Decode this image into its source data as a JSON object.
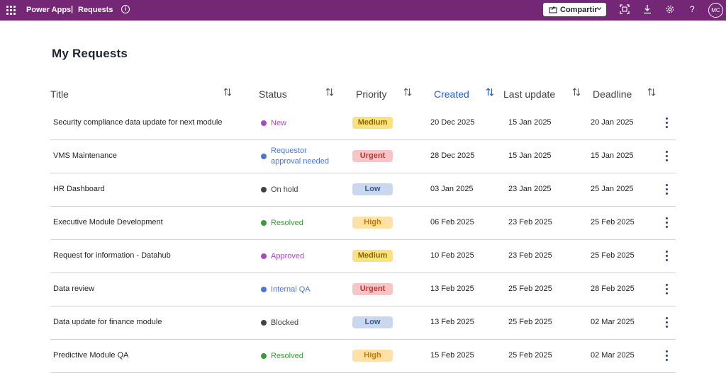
{
  "topbar": {
    "app": "Power Apps",
    "separator": "|",
    "page": "Requests",
    "info_icon": "info-icon",
    "share_label": "Compartir",
    "share_icon": "share-icon",
    "icons": [
      "focus-icon",
      "download-icon",
      "gear-icon",
      "help-icon"
    ],
    "help_glyph": "?",
    "avatar": "MC",
    "bar_color": "#742774"
  },
  "main": {
    "title": "My Requests",
    "columns": [
      "Title",
      "Status",
      "Priority",
      "Created",
      "Last update",
      "Deadline"
    ],
    "active_column": "Created",
    "rows": [
      {
        "title": "Security compliance data update for next module",
        "status": "New",
        "status_color": "#a64ac9",
        "priority": "Medium",
        "created": "20 Dec 2025",
        "updated": "15 Jan 2025",
        "deadline": "20 Jan 2025"
      },
      {
        "title": "VMS Maintenance",
        "status_line1": "Requestor",
        "status_line2": "approval needed",
        "status_color": "#4a78d1",
        "priority": "Urgent",
        "created": "28 Dec 2025",
        "updated": "15 Jan 2025",
        "deadline": "15 Jan 2025"
      },
      {
        "title": "HR Dashboard",
        "status": "On hold",
        "status_color": "#424242",
        "priority": "Low",
        "created": "03 Jan 2025",
        "updated": "23 Jan 2025",
        "deadline": "25 Jan 2025"
      },
      {
        "title": "Executive Module Development",
        "status": "Resolved",
        "status_color": "#3a9a3a",
        "priority": "High",
        "created": "06 Feb 2025",
        "updated": "23 Feb 2025",
        "deadline": "25 Feb 2025"
      },
      {
        "title": "Request for information - Datahub",
        "status": "Approved",
        "status_color": "#a64ac9",
        "priority": "Medium",
        "created": "10 Feb 2025",
        "updated": "23 Feb 2025",
        "deadline": "25 Feb 2025"
      },
      {
        "title": "Data review",
        "status": "Internal QA",
        "status_color": "#4a78d1",
        "priority": "Urgent",
        "created": "13 Feb 2025",
        "updated": "25 Feb 2025",
        "deadline": "28 Feb 2025"
      },
      {
        "title": "Data update for finance module",
        "status": "Blocked",
        "status_color": "#424242",
        "priority": "Low",
        "created": "13 Feb 2025",
        "updated": "25 Feb 2025",
        "deadline": "02 Mar 2025"
      },
      {
        "title": "Predictive Module QA",
        "status": "Resolved",
        "status_color": "#3a9a3a",
        "priority": "High",
        "created": "15 Feb 2025",
        "updated": "25 Feb 2025",
        "deadline": "02 Mar 2025"
      }
    ]
  }
}
